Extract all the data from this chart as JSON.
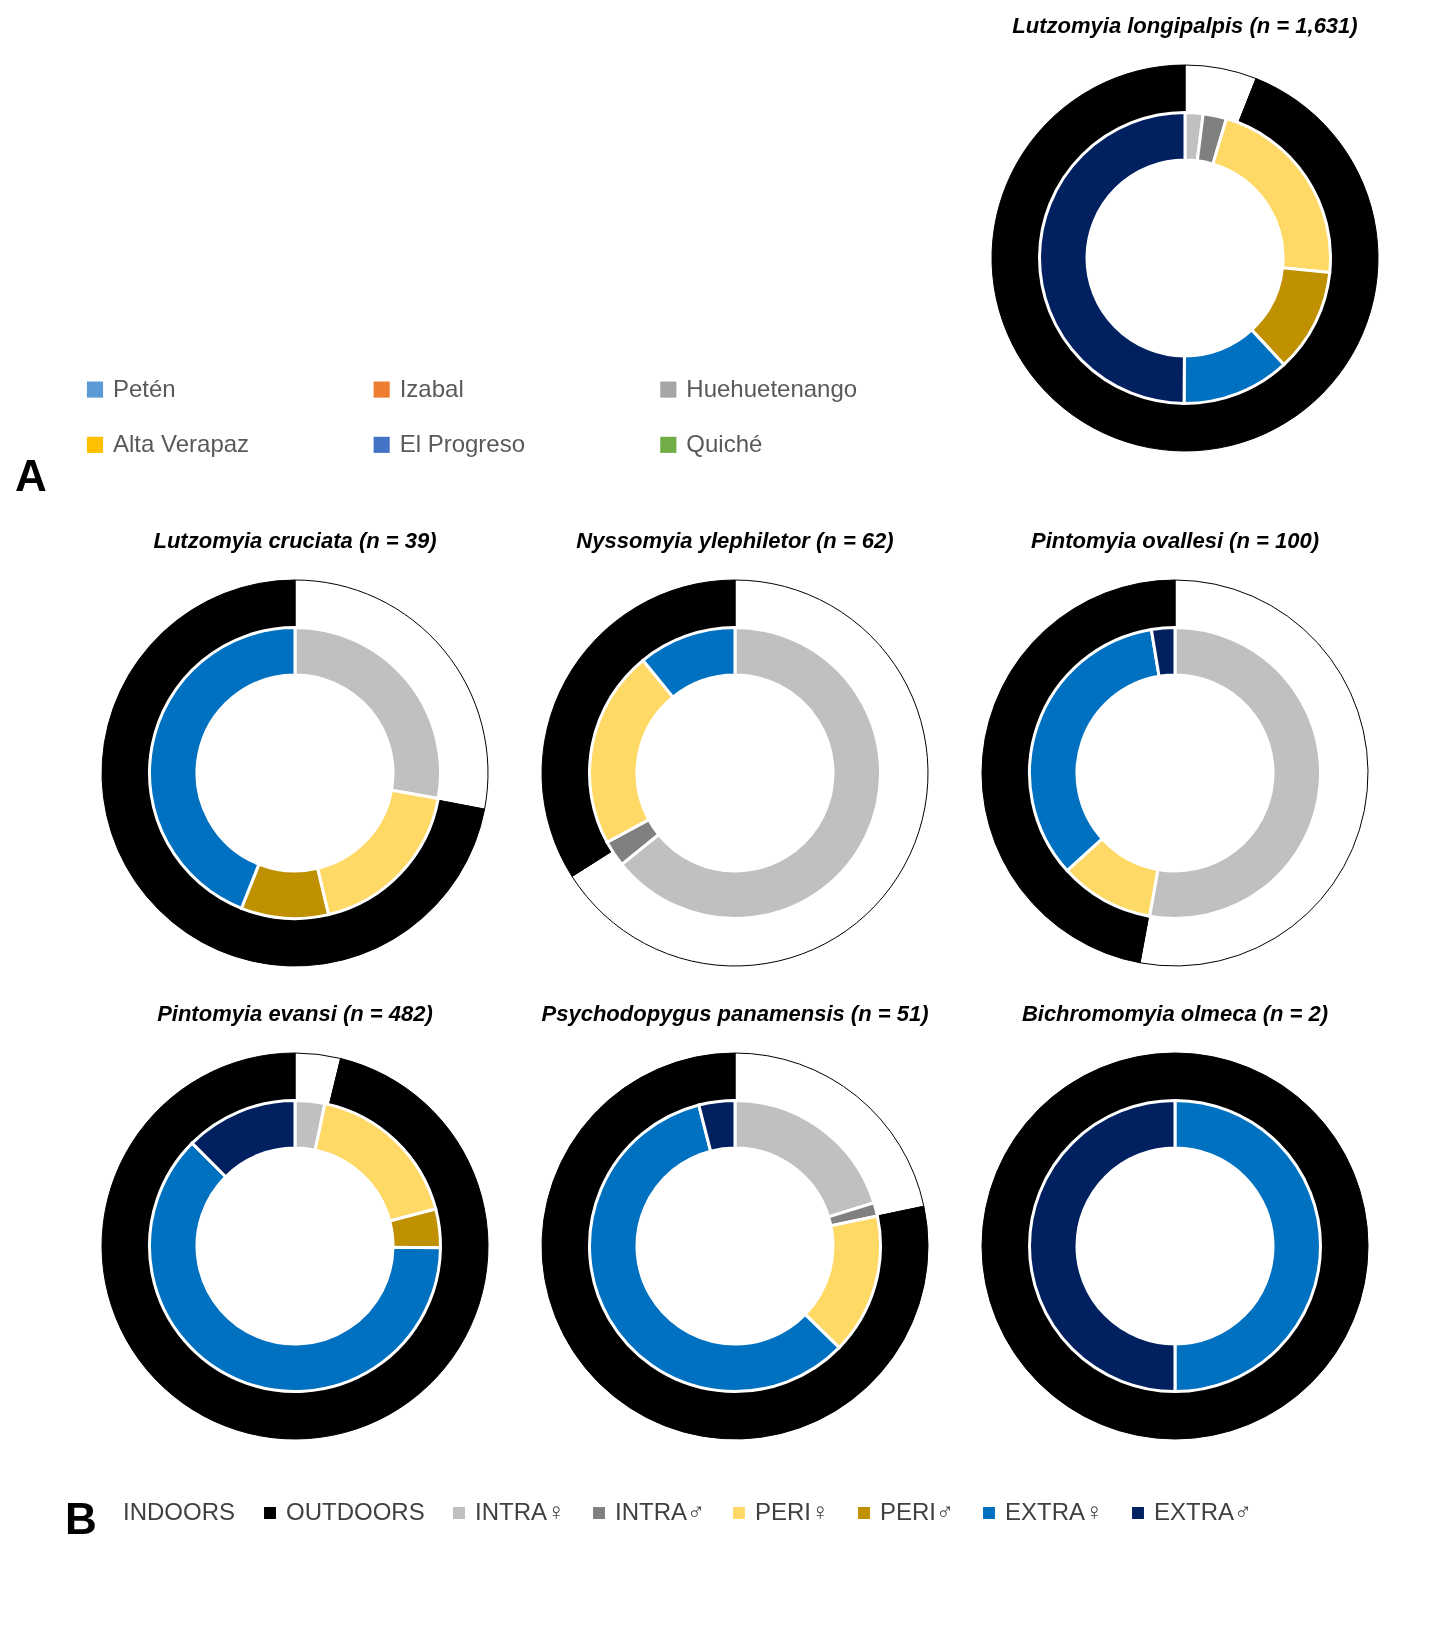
{
  "chart_data": [
    {
      "type": "other",
      "categories": [
        "Petén",
        "Izabal",
        "Huehuetenango",
        "Alta Verapaz",
        "El Progreso",
        "Quiché"
      ],
      "colors": [
        "#5b9bd5",
        "#ed7d31",
        "#a5a5a5",
        "#ffc000",
        "#4472c4",
        "#70ad47"
      ],
      "annotations": [
        "A"
      ]
    },
    {
      "type": "donut",
      "title": "Lutzomyia longipalpis (n = 1,631)",
      "categories": [
        null,
        null,
        null,
        null,
        null,
        null,
        null,
        null
      ],
      "colors": [
        "#ffffff",
        "#000000",
        "#c0c0c0",
        "#808080",
        "#ffd966",
        "#bf9000",
        "#0070c0",
        "#002060"
      ],
      "series": [
        {
          "values": [
            6,
            94,
            null,
            null,
            null,
            null,
            null,
            null
          ]
        },
        {
          "values": [
            null,
            null,
            2,
            2.6,
            22,
            11.5,
            12,
            49.9
          ]
        }
      ]
    },
    {
      "type": "donut",
      "title": "Lutzomyia cruciata (n = 39)",
      "categories": [
        null,
        null,
        null,
        null,
        null,
        null,
        null,
        null
      ],
      "colors": [
        "#ffffff",
        "#000000",
        "#c0c0c0",
        "#808080",
        "#ffd966",
        "#bf9000",
        "#0070c0",
        "#002060"
      ],
      "series": [
        {
          "values": [
            28,
            72,
            null,
            null,
            null,
            null,
            null,
            null
          ]
        },
        {
          "values": [
            null,
            null,
            27.8,
            null,
            18.5,
            9.7,
            44,
            null
          ]
        }
      ]
    },
    {
      "type": "donut",
      "title": "Nyssomyia ylephiletor (n = 62)",
      "categories": [
        null,
        null,
        null,
        null,
        null,
        null,
        null,
        null
      ],
      "colors": [
        "#ffffff",
        "#000000",
        "#c0c0c0",
        "#808080",
        "#ffd966",
        "#bf9000",
        "#0070c0",
        "#002060"
      ],
      "series": [
        {
          "values": [
            66,
            34,
            null,
            null,
            null,
            null,
            null,
            null
          ]
        },
        {
          "values": [
            null,
            null,
            64.2,
            2.9,
            22,
            null,
            10.9,
            null
          ]
        }
      ]
    },
    {
      "type": "donut",
      "title": "Pintomyia ovallesi (n = 100)",
      "categories": [
        null,
        null,
        null,
        null,
        null,
        null,
        null,
        null
      ],
      "colors": [
        "#ffffff",
        "#000000",
        "#c0c0c0",
        "#808080",
        "#ffd966",
        "#bf9000",
        "#0070c0",
        "#002060"
      ],
      "series": [
        {
          "values": [
            52.9,
            47.1,
            null,
            null,
            null,
            null,
            null,
            null
          ]
        },
        {
          "values": [
            null,
            null,
            52.8,
            null,
            10.5,
            null,
            34.1,
            2.6
          ]
        }
      ]
    },
    {
      "type": "donut",
      "title": "Pintomyia evansi (n = 482)",
      "categories": [
        null,
        null,
        null,
        null,
        null,
        null,
        null,
        null
      ],
      "colors": [
        "#ffffff",
        "#000000",
        "#c0c0c0",
        "#808080",
        "#ffd966",
        "#bf9000",
        "#0070c0",
        "#002060"
      ],
      "series": [
        {
          "values": [
            3.8,
            96.2,
            null,
            null,
            null,
            null,
            null,
            null
          ]
        },
        {
          "values": [
            null,
            null,
            3.3,
            null,
            17.6,
            4.3,
            62.3,
            12.5
          ]
        }
      ]
    },
    {
      "type": "donut",
      "title": "Psychodopygus panamensis (n = 51)",
      "categories": [
        null,
        null,
        null,
        null,
        null,
        null,
        null,
        null
      ],
      "colors": [
        "#ffffff",
        "#000000",
        "#c0c0c0",
        "#808080",
        "#ffd966",
        "#bf9000",
        "#0070c0",
        "#002060"
      ],
      "series": [
        {
          "values": [
            21.7,
            78.3,
            null,
            null,
            null,
            null,
            null,
            null
          ]
        },
        {
          "values": [
            null,
            null,
            20.2,
            1.5,
            15.6,
            null,
            58.7,
            4
          ]
        }
      ]
    },
    {
      "type": "donut",
      "title": "Bichromomyia olmeca (n = 2)",
      "categories": [
        "INDOORS",
        "OUTDOORS",
        "INTRA♀",
        "INTRA♂",
        "PERI♀",
        "PERI♂",
        "EXTRA♀",
        "EXTRA♂"
      ],
      "colors": [
        "#ffffff",
        "#000000",
        "#c0c0c0",
        "#808080",
        "#ffd966",
        "#bf9000",
        "#0070c0",
        "#002060"
      ],
      "legend": "bottom",
      "annotations": [
        "B"
      ],
      "series": [
        {
          "values": [
            null,
            100,
            null,
            null,
            null,
            null,
            null,
            null
          ]
        },
        {
          "values": [
            null,
            null,
            null,
            null,
            null,
            null,
            50,
            50
          ]
        }
      ]
    }
  ]
}
